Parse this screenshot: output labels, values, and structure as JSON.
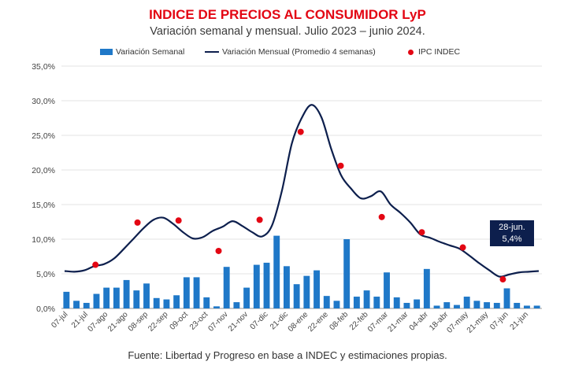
{
  "chart_data": {
    "type": "bar",
    "title": "INDICE DE PRECIOS AL CONSUMIDOR LyP",
    "subtitle": "Variación semanal y mensual. Julio 2023 – junio 2024.",
    "source_note": "Fuente: Libertad y Progreso en base a INDEC y estimaciones propias.",
    "xlabel": "",
    "ylabel": "",
    "ylim": [
      0,
      35
    ],
    "y_ticks": [
      "0,0%",
      "5,0%",
      "10,0%",
      "15,0%",
      "20,0%",
      "25,0%",
      "30,0%",
      "35,0%"
    ],
    "y_tick_values": [
      0,
      5,
      10,
      15,
      20,
      25,
      30,
      35
    ],
    "grid": true,
    "legend_position": "top",
    "x_tick_labels": [
      "07-jul",
      "21-jul",
      "07-ago",
      "21-ago",
      "08-sep",
      "22-sep",
      "09-oct",
      "23-oct",
      "07-nov",
      "21-nov",
      "07-dic",
      "21-dic",
      "08-ene",
      "22-ene",
      "08-feb",
      "22-feb",
      "07-mar",
      "21-mar",
      "04-abr",
      "18-abr",
      "07-may",
      "21-may",
      "07-jun",
      "21-jun"
    ],
    "series": [
      {
        "name": "Variación Semanal",
        "type": "bar",
        "color": "#1f78c8",
        "values": [
          2.4,
          1.1,
          0.8,
          2.1,
          3.0,
          3.0,
          4.1,
          2.6,
          3.6,
          1.5,
          1.3,
          1.9,
          4.5,
          4.5,
          1.6,
          0.3,
          6.0,
          0.9,
          3.0,
          6.3,
          6.6,
          10.5,
          6.1,
          3.5,
          4.7,
          5.5,
          1.8,
          1.1,
          10.0,
          1.7,
          2.6,
          1.7,
          5.2,
          1.6,
          0.8,
          1.3,
          5.7,
          0.4,
          0.9,
          0.5,
          1.7,
          1.1,
          0.9,
          0.8,
          2.9,
          0.8,
          0.4,
          0.4
        ]
      },
      {
        "name": "Variación Mensual (Promedio 4 semanas)",
        "type": "line",
        "color": "#0d1f4d",
        "values": [
          5.4,
          5.3,
          5.5,
          6.1,
          6.4,
          7.2,
          8.6,
          10.1,
          11.6,
          12.8,
          13.1,
          12.2,
          11.0,
          10.1,
          10.3,
          11.2,
          11.8,
          12.6,
          11.9,
          11.0,
          10.4,
          12.0,
          17.0,
          23.8,
          27.5,
          29.4,
          27.6,
          23.0,
          19.2,
          17.3,
          15.9,
          16.2,
          16.9,
          15.0,
          13.8,
          12.4,
          10.7,
          10.2,
          9.6,
          9.1,
          8.6,
          7.6,
          6.5,
          5.5,
          4.6,
          4.9,
          5.2,
          5.3,
          5.4
        ]
      },
      {
        "name": "IPC INDEC",
        "type": "scatter",
        "color": "#e30613",
        "points": [
          {
            "x": 3.4,
            "y": 6.3
          },
          {
            "x": 7.6,
            "y": 12.4
          },
          {
            "x": 11.7,
            "y": 12.7
          },
          {
            "x": 15.7,
            "y": 8.3
          },
          {
            "x": 19.8,
            "y": 12.8
          },
          {
            "x": 23.9,
            "y": 25.5
          },
          {
            "x": 27.9,
            "y": 20.6
          },
          {
            "x": 32.0,
            "y": 13.2
          },
          {
            "x": 36.0,
            "y": 11.0
          },
          {
            "x": 40.1,
            "y": 8.8
          },
          {
            "x": 44.1,
            "y": 4.2
          }
        ]
      }
    ],
    "annotation": {
      "date": "28-jun.",
      "value": "5,4%"
    }
  }
}
